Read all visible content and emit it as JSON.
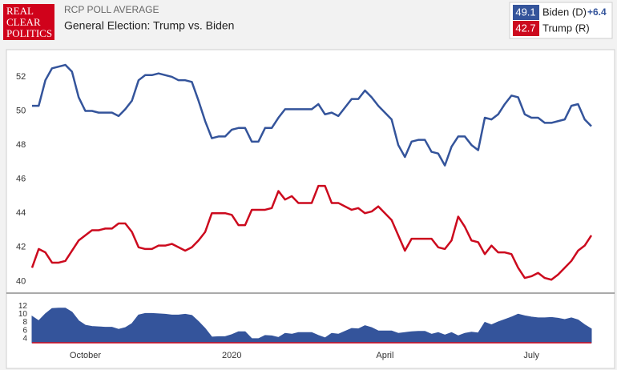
{
  "header": {
    "logo": [
      "REAL",
      "CLEAR",
      "POLITICS"
    ]
  },
  "chart_data": {
    "type": "line",
    "title": "RCP POLL AVERAGE",
    "subtitle": "General Election: Trump vs. Biden",
    "categories": [
      null,
      null,
      null,
      null,
      null,
      null,
      null,
      null,
      "October",
      null,
      null,
      null,
      null,
      null,
      null,
      null,
      null,
      null,
      null,
      null,
      null,
      null,
      null,
      null,
      null,
      null,
      null,
      null,
      null,
      null,
      "2020",
      null,
      null,
      null,
      null,
      null,
      null,
      null,
      null,
      null,
      null,
      null,
      null,
      null,
      null,
      null,
      null,
      null,
      null,
      null,
      null,
      null,
      null,
      "April",
      null,
      null,
      null,
      null,
      null,
      null,
      null,
      null,
      null,
      null,
      null,
      null,
      null,
      null,
      null,
      null,
      null,
      null,
      null,
      null,
      null,
      "July",
      null,
      null,
      null,
      null,
      null,
      null,
      null,
      null,
      null
    ],
    "series": [
      {
        "name": "Biden (D)",
        "color": "#34549b",
        "values": [
          50.3,
          50.3,
          51.8,
          52.5,
          52.6,
          52.7,
          52.3,
          50.8,
          50.0,
          50.0,
          49.9,
          49.9,
          49.9,
          49.7,
          50.1,
          50.6,
          51.8,
          52.1,
          52.1,
          52.2,
          52.1,
          52.0,
          51.8,
          51.8,
          51.7,
          50.6,
          49.4,
          48.4,
          48.5,
          48.5,
          48.9,
          49.0,
          49.0,
          48.2,
          48.2,
          49.0,
          49.0,
          49.6,
          50.1,
          50.1,
          50.1,
          50.1,
          50.1,
          50.4,
          49.8,
          49.9,
          49.7,
          50.2,
          50.7,
          50.7,
          51.2,
          50.8,
          50.3,
          49.9,
          49.5,
          48.0,
          47.3,
          48.2,
          48.3,
          48.3,
          47.6,
          47.5,
          46.8,
          47.9,
          48.5,
          48.5,
          48.0,
          47.7,
          49.6,
          49.5,
          49.8,
          50.4,
          50.9,
          50.8,
          49.8,
          49.6,
          49.6,
          49.3,
          49.3,
          49.4,
          49.5,
          50.3,
          50.4,
          49.5,
          49.1
        ]
      },
      {
        "name": "Trump (R)",
        "color": "#cc0a1e",
        "values": [
          40.8,
          41.9,
          41.7,
          41.1,
          41.1,
          41.2,
          41.8,
          42.4,
          42.7,
          43.0,
          43.0,
          43.1,
          43.1,
          43.4,
          43.4,
          42.9,
          42.0,
          41.9,
          41.9,
          42.1,
          42.1,
          42.2,
          42.0,
          41.8,
          42.0,
          42.4,
          42.9,
          44.0,
          44.0,
          44.0,
          43.9,
          43.3,
          43.3,
          44.2,
          44.2,
          44.2,
          44.3,
          45.3,
          44.8,
          45.0,
          44.6,
          44.6,
          44.6,
          45.6,
          45.6,
          44.6,
          44.6,
          44.4,
          44.2,
          44.3,
          44.0,
          44.1,
          44.4,
          44.0,
          43.6,
          42.7,
          41.8,
          42.5,
          42.5,
          42.5,
          42.5,
          42.0,
          41.9,
          42.4,
          43.8,
          43.2,
          42.4,
          42.3,
          41.6,
          42.1,
          41.7,
          41.7,
          41.6,
          40.8,
          40.2,
          40.3,
          40.5,
          40.2,
          40.1,
          40.4,
          40.8,
          41.2,
          41.8,
          42.1,
          42.7
        ]
      }
    ],
    "ylim": [
      39.5,
      53.5
    ],
    "yticks": [
      40,
      42,
      44,
      46,
      48,
      50,
      52
    ],
    "grid": false,
    "legend_spread": "+6.4",
    "spread_chart": {
      "type": "area",
      "color": "#34549b",
      "values": [
        9.5,
        8.4,
        10.1,
        11.4,
        11.5,
        11.5,
        10.5,
        8.4,
        7.3,
        7.0,
        6.9,
        6.8,
        6.8,
        6.3,
        6.7,
        7.7,
        9.8,
        10.2,
        10.2,
        10.1,
        10.0,
        9.8,
        9.8,
        10.0,
        9.7,
        8.2,
        6.5,
        4.4,
        4.5,
        4.5,
        5.0,
        5.7,
        5.7,
        4.0,
        4.0,
        4.8,
        4.7,
        4.3,
        5.3,
        5.1,
        5.5,
        5.5,
        5.5,
        4.8,
        4.2,
        5.3,
        5.1,
        5.8,
        6.5,
        6.4,
        7.2,
        6.7,
        5.9,
        5.9,
        5.9,
        5.3,
        5.5,
        5.7,
        5.8,
        5.8,
        5.1,
        5.5,
        4.9,
        5.5,
        4.7,
        5.3,
        5.6,
        5.4,
        8.0,
        7.4,
        8.1,
        8.7,
        9.3,
        10.0,
        9.6,
        9.3,
        9.1,
        9.1,
        9.2,
        9.0,
        8.7,
        9.1,
        8.6,
        7.4,
        6.4
      ],
      "ylim": [
        3,
        13.5
      ],
      "yticks": [
        4,
        6,
        8,
        10,
        12
      ]
    }
  }
}
